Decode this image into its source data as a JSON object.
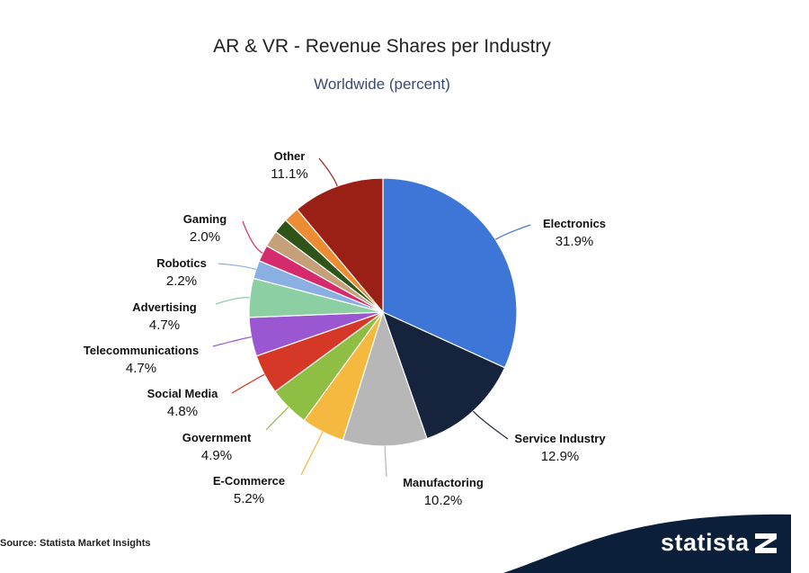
{
  "header": {
    "title": "AR & VR - Revenue Shares per Industry",
    "subtitle": "Worldwide (percent)"
  },
  "chart_data": {
    "type": "pie",
    "title": "AR & VR - Revenue Shares per Industry",
    "subtitle": "Worldwide (percent)",
    "unit": "percent",
    "slices": [
      {
        "label": "Electronics",
        "value": 31.9,
        "value_text": "31.9%",
        "color": "#3e76d8"
      },
      {
        "label": "Service Industry",
        "value": 12.9,
        "value_text": "12.9%",
        "color": "#15233d"
      },
      {
        "label": "Manufactoring",
        "value": 10.2,
        "value_text": "10.2%",
        "color": "#b7b7b7"
      },
      {
        "label": "E-Commerce",
        "value": 5.2,
        "value_text": "5.2%",
        "color": "#f4b93e"
      },
      {
        "label": "Government",
        "value": 4.9,
        "value_text": "4.9%",
        "color": "#8fbe45"
      },
      {
        "label": "Social Media",
        "value": 4.8,
        "value_text": "4.8%",
        "color": "#d63827"
      },
      {
        "label": "Telecommunications",
        "value": 4.7,
        "value_text": "4.7%",
        "color": "#9b57d2"
      },
      {
        "label": "Advertising",
        "value": 4.7,
        "value_text": "4.7%",
        "color": "#8ccfa3"
      },
      {
        "label": "Robotics",
        "value": 2.2,
        "value_text": "2.2%",
        "color": "#89afe3"
      },
      {
        "label": "Gaming",
        "value": 2.0,
        "value_text": "2.0%",
        "color": "#d32b6c"
      },
      {
        "label": "",
        "value": 2.0,
        "value_text": "",
        "color": "#c5a078"
      },
      {
        "label": "",
        "value": 1.8,
        "value_text": "",
        "color": "#2f5419"
      },
      {
        "label": "",
        "value": 1.9,
        "value_text": "",
        "color": "#ec8d34"
      },
      {
        "label": "Other",
        "value": 11.1,
        "value_text": "11.1%",
        "color": "#9a2016"
      }
    ]
  },
  "footer": {
    "source": "Source: Statista Market Insights",
    "brand": "statista",
    "brand_color": "#0b1f3a"
  }
}
